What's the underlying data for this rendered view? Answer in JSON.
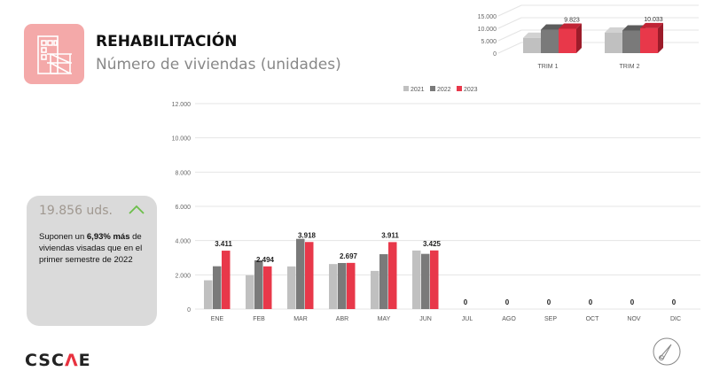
{
  "header": {
    "title": "REHABILITACIÓN",
    "subtitle": "Número de viviendas (unidades)"
  },
  "kpi": {
    "value": "19.856 uds.",
    "text_before": "Suponen un ",
    "highlight": "6,93% más",
    "text_after": " de viviendas visadas que en el primer semestre de 2022",
    "trend_icon": "chevron-up-icon",
    "trend_color": "#6cbf4a"
  },
  "brand": {
    "logo_text": "CSCAE"
  },
  "colors": {
    "2021": "#c0c0c0",
    "2022": "#7a7a7a",
    "2023": "#e8384a"
  },
  "chart_data": [
    {
      "type": "bar",
      "title": "",
      "categories": [
        "ENE",
        "FEB",
        "MAR",
        "ABR",
        "MAY",
        "JUN",
        "JUL",
        "AGO",
        "SEP",
        "OCT",
        "NOV",
        "DIC"
      ],
      "series": [
        {
          "name": "2021",
          "values": [
            1680,
            1975,
            2490,
            2630,
            2230,
            3420,
            null,
            null,
            null,
            null,
            null,
            null
          ]
        },
        {
          "name": "2022",
          "values": [
            2500,
            2850,
            4100,
            2690,
            3205,
            3224,
            null,
            null,
            null,
            null,
            null,
            null
          ]
        },
        {
          "name": "2023",
          "values": [
            3411,
            2494,
            3918,
            2697,
            3911,
            3425,
            0,
            0,
            0,
            0,
            0,
            0
          ]
        }
      ],
      "data_labels": [
        "3.411",
        "2.494",
        "3.918",
        "2.697",
        "3.911",
        "3.425",
        "0",
        "0",
        "0",
        "0",
        "0",
        "0"
      ],
      "yticks": [
        "0",
        "2.000",
        "4.000",
        "6.000",
        "8.000",
        "10.000",
        "12.000"
      ],
      "ylim": [
        0,
        12000
      ],
      "legend": [
        "2021",
        "2022",
        "2023"
      ],
      "legend_position": "top",
      "grid": true
    },
    {
      "type": "bar",
      "style": "3d",
      "categories": [
        "TRIM 1",
        "TRIM 2"
      ],
      "series": [
        {
          "name": "2021",
          "values": [
            6145,
            8280
          ]
        },
        {
          "name": "2022",
          "values": [
            9450,
            9119
          ]
        },
        {
          "name": "2023",
          "values": [
            9823,
            10033
          ]
        }
      ],
      "data_labels": [
        "9.823",
        "10.033"
      ],
      "yticks": [
        "0",
        "5.000",
        "10.000",
        "15.000"
      ],
      "ylim": [
        0,
        15000
      ]
    }
  ]
}
